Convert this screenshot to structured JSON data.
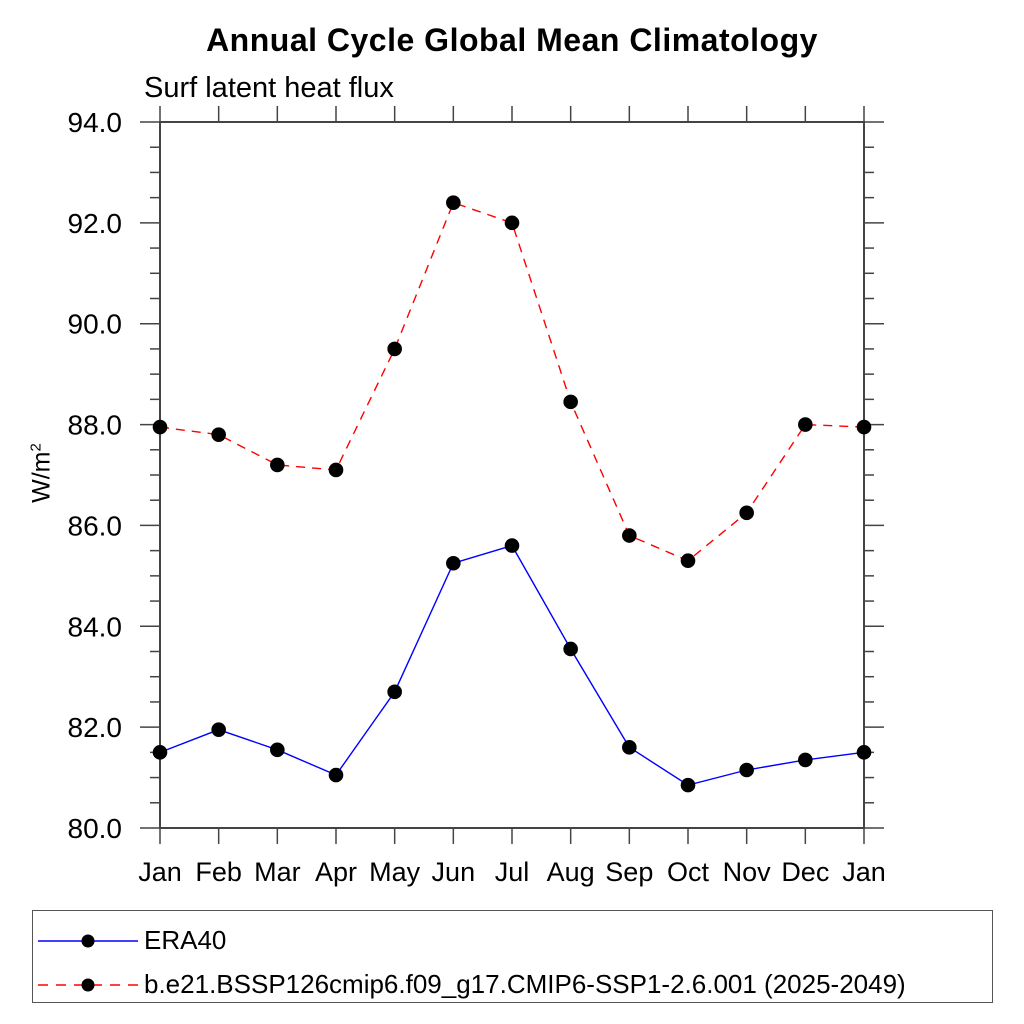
{
  "chart_data": {
    "type": "line",
    "title": "Annual Cycle Global Mean Climatology",
    "subtitle": "Surf latent heat flux",
    "ylabel": "W/m²",
    "ylabel_base": "W/m",
    "ylabel_exponent": "2",
    "xlabel": "",
    "categories": [
      "Jan",
      "Feb",
      "Mar",
      "Apr",
      "May",
      "Jun",
      "Jul",
      "Aug",
      "Sep",
      "Oct",
      "Nov",
      "Dec",
      "Jan"
    ],
    "ylim": [
      80.0,
      94.0
    ],
    "ytick_interval": 2.0,
    "yminor_interval": 0.5,
    "ytick_labels": [
      "94.0",
      "92.0",
      "90.0",
      "88.0",
      "86.0",
      "84.0",
      "82.0",
      "80.0"
    ],
    "grid": false,
    "legend_position": "bottom-left",
    "axis_color": "#444444",
    "marker_color": "#000000",
    "series": [
      {
        "name": "ERA40",
        "color": "#0000ff",
        "line_style": "solid",
        "marker": "filled-circle",
        "values": [
          81.5,
          81.95,
          81.55,
          81.05,
          82.7,
          85.25,
          85.6,
          83.55,
          81.6,
          80.85,
          81.15,
          81.35,
          81.5
        ]
      },
      {
        "name": "b.e21.BSSP126cmip6.f09_g17.CMIP6-SSP1-2.6.001 (2025-2049)",
        "color": "#ff0000",
        "line_style": "dashed",
        "marker": "filled-circle",
        "values": [
          87.95,
          87.8,
          87.2,
          87.1,
          89.5,
          92.4,
          92.0,
          88.45,
          85.8,
          85.3,
          86.25,
          88.0,
          87.95
        ]
      }
    ]
  }
}
